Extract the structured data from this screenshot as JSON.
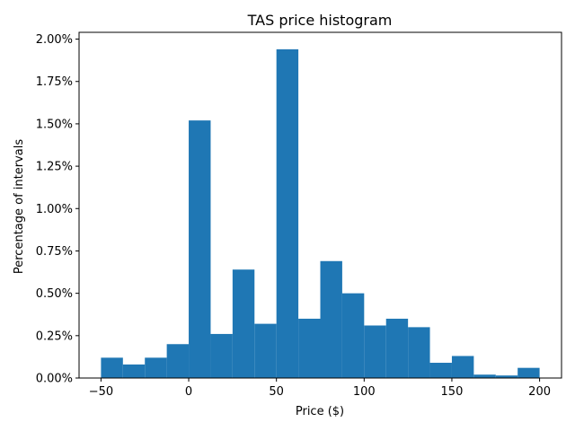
{
  "chart_data": {
    "type": "bar",
    "title": "TAS price histogram",
    "xlabel": "Price ($)",
    "ylabel": "Percentage of intervals",
    "bin_edges": [
      -50,
      -37.5,
      -25,
      -12.5,
      0,
      12.5,
      25,
      37.5,
      50,
      62.5,
      75,
      87.5,
      100,
      112.5,
      125,
      137.5,
      150,
      162.5,
      175,
      187.5,
      200
    ],
    "values": [
      0.12,
      0.08,
      0.12,
      0.2,
      1.52,
      0.26,
      0.64,
      0.32,
      1.94,
      0.35,
      0.69,
      0.5,
      0.31,
      0.35,
      0.3,
      0.09,
      0.13,
      0.02,
      0.015,
      0.06
    ],
    "xlim": [
      -62.5,
      212.5
    ],
    "ylim": [
      0,
      2.04
    ],
    "xticks": [
      -50,
      0,
      50,
      100,
      150,
      200
    ],
    "xtick_labels": [
      "−50",
      "0",
      "50",
      "100",
      "150",
      "200"
    ],
    "yticks": [
      0,
      0.25,
      0.5,
      0.75,
      1.0,
      1.25,
      1.5,
      1.75,
      2.0
    ],
    "ytick_labels": [
      "0.00%",
      "0.25%",
      "0.50%",
      "0.75%",
      "1.00%",
      "1.25%",
      "1.50%",
      "1.75%",
      "2.00%"
    ],
    "grid": false,
    "bar_color": "#1f77b4"
  }
}
